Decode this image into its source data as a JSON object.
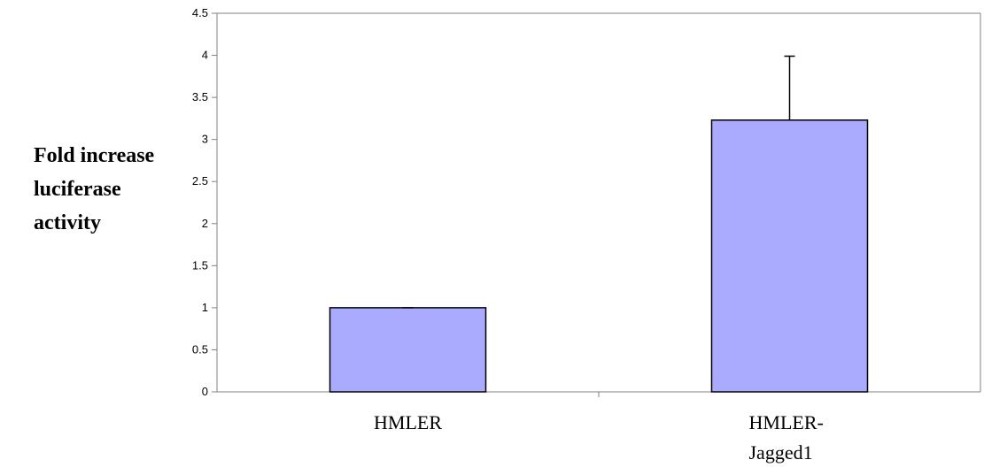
{
  "chart_data": {
    "type": "bar",
    "categories": [
      [
        "HMLER"
      ],
      [
        "HMLER-",
        "Jagged1"
      ]
    ],
    "values": [
      1.0,
      3.23
    ],
    "error_plus": [
      0.0,
      0.76
    ],
    "ylabel_lines": [
      "Fold increase",
      "luciferase",
      "activity"
    ],
    "ylim": [
      0,
      4.5
    ],
    "yticks": [
      0,
      0.5,
      1,
      1.5,
      2,
      2.5,
      3,
      3.5,
      4,
      4.5
    ],
    "ytick_labels": [
      "0",
      "0.5",
      "1",
      "1.5",
      "2",
      "2.5",
      "3",
      "3.5",
      "4",
      "4.5"
    ],
    "grid": false,
    "legend": "none",
    "bar_color": "#aaaaff",
    "bar_edge_color": "#000000"
  }
}
